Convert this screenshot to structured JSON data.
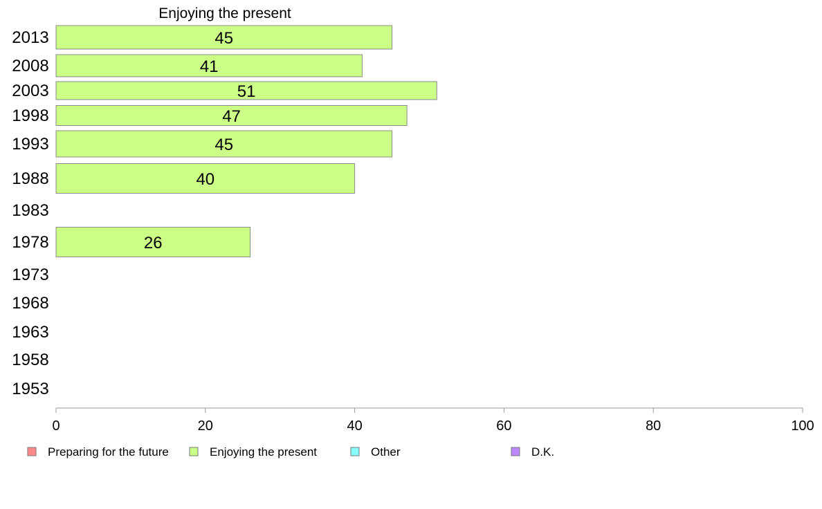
{
  "chart_data": {
    "type": "bar",
    "orientation": "horizontal",
    "title": "Enjoying the present",
    "categories": [
      "2013",
      "2008",
      "2003",
      "1998",
      "1993",
      "1988",
      "1983",
      "1978",
      "1973",
      "1968",
      "1963",
      "1958",
      "1953"
    ],
    "series": [
      {
        "name": "Enjoying the present",
        "color": "#ccff88",
        "values": [
          45,
          41,
          51,
          47,
          45,
          40,
          null,
          26,
          null,
          null,
          null,
          null,
          null
        ]
      }
    ],
    "data_labels": [
      "45",
      "41",
      "51",
      "47",
      "45",
      "40",
      "",
      "26",
      "",
      "",
      "",
      "",
      ""
    ],
    "xlim": [
      0,
      100
    ],
    "x_ticks": [
      0,
      20,
      40,
      60,
      80,
      100
    ],
    "x_tick_labels": [
      "0",
      "20",
      "40",
      "60",
      "80",
      "100"
    ],
    "xlabel": "",
    "ylabel": "",
    "grid": false,
    "legend": {
      "placement": "bottom",
      "entries": [
        {
          "label": "Preparing for the future",
          "color": "#ff8888"
        },
        {
          "label": "Enjoying the present",
          "color": "#ccff88"
        },
        {
          "label": "Other",
          "color": "#88ffff"
        },
        {
          "label": "D.K.",
          "color": "#bb88ff"
        }
      ]
    }
  }
}
